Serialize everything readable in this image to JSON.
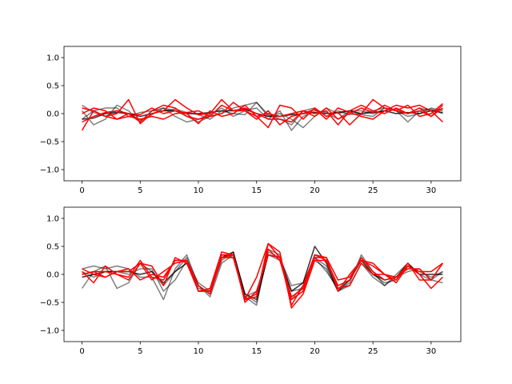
{
  "chart_data": [
    {
      "type": "line",
      "xlim": [
        -1.55,
        32.55
      ],
      "ylim": [
        -1.2,
        1.2
      ],
      "xticks": [
        0,
        5,
        10,
        15,
        20,
        25,
        30
      ],
      "yticks": [
        -1.0,
        -0.5,
        0.0,
        0.5,
        1.0
      ],
      "xtick_labels": [
        "0",
        "5",
        "10",
        "15",
        "20",
        "25",
        "30"
      ],
      "ytick_labels": [
        "−1.0",
        "−0.5",
        "0.0",
        "0.5",
        "1.0"
      ],
      "grid": false,
      "series": [
        {
          "color": "#000000",
          "opacity": 0.5,
          "values": [
            0.15,
            0.02,
            -0.05,
            0.05,
            0.0,
            -0.12,
            -0.02,
            0.1,
            0.05,
            -0.05,
            -0.15,
            -0.05,
            0.0,
            0.1,
            0.15,
            0.2,
            -0.02,
            -0.1,
            -0.2,
            0.05,
            0.1,
            -0.05,
            0.05,
            -0.02,
            0.0,
            0.05,
            0.1,
            0.05,
            -0.05,
            0.0,
            0.1,
            0.05
          ]
        },
        {
          "color": "#000000",
          "opacity": 0.5,
          "values": [
            0.05,
            -0.2,
            -0.1,
            0.15,
            0.05,
            -0.15,
            0.05,
            0.1,
            -0.05,
            -0.15,
            -0.1,
            -0.02,
            0.1,
            -0.05,
            0.05,
            0.1,
            -0.1,
            0.05,
            -0.3,
            -0.05,
            0.05,
            0.02,
            -0.1,
            0.05,
            -0.02,
            -0.05,
            0.1,
            0.05,
            -0.15,
            0.05,
            0.08,
            0.0
          ]
        },
        {
          "color": "#000000",
          "opacity": 0.5,
          "values": [
            -0.1,
            0.05,
            0.1,
            0.1,
            -0.05,
            0.02,
            0.05,
            0.05,
            0.08,
            0.02,
            -0.02,
            -0.1,
            0.05,
            0.0,
            -0.02,
            0.2,
            -0.05,
            0.0,
            -0.1,
            -0.25,
            -0.05,
            0.1,
            0.0,
            0.05,
            0.05,
            0.0,
            0.05,
            0.08,
            0.0,
            0.1,
            0.05,
            0.08
          ]
        },
        {
          "color": "#000000",
          "opacity": 0.8,
          "values": [
            -0.1,
            -0.08,
            0.0,
            0.02,
            0.0,
            -0.05,
            0.0,
            0.05,
            0.05,
            0.0,
            0.0,
            0.02,
            0.05,
            0.05,
            0.08,
            0.0,
            -0.05,
            -0.05,
            -0.02,
            0.0,
            0.02,
            0.0,
            0.02,
            0.05,
            0.0,
            0.02,
            0.05,
            0.0,
            0.02,
            0.0,
            0.05,
            0.02
          ]
        },
        {
          "color": "#ff0000",
          "opacity": 1.0,
          "values": [
            -0.3,
            0.05,
            -0.05,
            0.0,
            0.25,
            -0.18,
            0.0,
            0.05,
            0.25,
            0.1,
            -0.02,
            0.0,
            0.25,
            0.05,
            0.05,
            -0.05,
            -0.25,
            0.15,
            0.1,
            -0.1,
            0.1,
            -0.05,
            0.02,
            -0.2,
            0.0,
            0.25,
            0.1,
            0.05,
            0.15,
            -0.05,
            0.0,
            0.18
          ]
        },
        {
          "color": "#ff0000",
          "opacity": 1.0,
          "values": [
            0.1,
            0.05,
            -0.05,
            -0.1,
            0.0,
            -0.15,
            0.05,
            0.15,
            0.1,
            -0.05,
            -0.1,
            -0.05,
            0.0,
            0.2,
            0.05,
            -0.1,
            0.05,
            -0.2,
            -0.05,
            0.0,
            0.08,
            -0.1,
            0.1,
            0.02,
            -0.05,
            -0.1,
            0.05,
            0.15,
            0.1,
            0.15,
            0.05,
            -0.15
          ]
        },
        {
          "color": "#ff0000",
          "opacity": 1.0,
          "values": [
            0.0,
            0.1,
            0.05,
            -0.1,
            -0.05,
            -0.1,
            -0.05,
            -0.1,
            0.0,
            0.02,
            0.05,
            -0.05,
            0.15,
            0.05,
            0.1,
            0.0,
            -0.1,
            -0.1,
            -0.15,
            0.05,
            0.0,
            0.05,
            -0.2,
            0.05,
            0.15,
            0.05,
            0.0,
            0.1,
            0.0,
            0.05,
            -0.05,
            0.1
          ]
        },
        {
          "color": "#ff0000",
          "opacity": 1.0,
          "values": [
            -0.15,
            -0.05,
            0.02,
            0.05,
            0.0,
            -0.02,
            0.1,
            0.0,
            0.05,
            0.0,
            -0.18,
            0.05,
            -0.05,
            0.0,
            0.15,
            -0.05,
            0.0,
            -0.05,
            0.0,
            0.05,
            -0.05,
            0.1,
            -0.1,
            0.0,
            0.1,
            0.02,
            0.15,
            0.05,
            0.0,
            0.1,
            -0.05,
            0.15
          ]
        }
      ]
    },
    {
      "type": "line",
      "xlim": [
        -1.55,
        32.55
      ],
      "ylim": [
        -1.2,
        1.2
      ],
      "xticks": [
        0,
        5,
        10,
        15,
        20,
        25,
        30
      ],
      "yticks": [
        -1.0,
        -0.5,
        0.0,
        0.5,
        1.0
      ],
      "xtick_labels": [
        "0",
        "5",
        "10",
        "15",
        "20",
        "25",
        "30"
      ],
      "ytick_labels": [
        "−1.0",
        "−0.5",
        "0.0",
        "0.5",
        "1.0"
      ],
      "grid": false,
      "series": [
        {
          "color": "#000000",
          "opacity": 0.5,
          "values": [
            0.1,
            0.15,
            0.1,
            0.15,
            0.1,
            -0.05,
            -0.05,
            -0.45,
            0.1,
            0.35,
            -0.2,
            -0.4,
            0.2,
            0.35,
            -0.35,
            -0.5,
            0.4,
            0.3,
            -0.2,
            -0.15,
            0.3,
            0.05,
            -0.25,
            -0.1,
            0.3,
            0.0,
            -0.15,
            -0.1,
            0.15,
            0.05,
            -0.05,
            0.05
          ]
        },
        {
          "color": "#000000",
          "opacity": 0.5,
          "values": [
            -0.25,
            0.05,
            0.15,
            -0.25,
            -0.15,
            0.2,
            0.05,
            -0.2,
            0.05,
            0.3,
            -0.25,
            -0.3,
            0.35,
            0.3,
            -0.4,
            -0.55,
            0.45,
            0.35,
            -0.45,
            -0.2,
            0.3,
            0.15,
            -0.3,
            -0.15,
            0.35,
            0.05,
            -0.2,
            -0.05,
            0.05,
            0.1,
            -0.1,
            -0.15
          ]
        },
        {
          "color": "#000000",
          "opacity": 0.5,
          "values": [
            0.05,
            -0.05,
            0.05,
            0.05,
            0.0,
            0.1,
            0.1,
            -0.3,
            -0.1,
            0.25,
            -0.15,
            -0.3,
            0.25,
            0.4,
            -0.4,
            -0.3,
            0.35,
            0.25,
            -0.3,
            -0.25,
            0.25,
            0.1,
            -0.3,
            -0.2,
            0.2,
            -0.05,
            -0.2,
            0.0,
            0.2,
            0.0,
            -0.1,
            0.05
          ]
        },
        {
          "color": "#000000",
          "opacity": 0.8,
          "values": [
            -0.05,
            0.0,
            0.05,
            0.05,
            0.05,
            0.0,
            0.05,
            -0.15,
            0.05,
            0.2,
            -0.2,
            -0.35,
            0.3,
            0.4,
            -0.35,
            -0.45,
            0.35,
            0.3,
            -0.3,
            -0.15,
            0.5,
            0.2,
            -0.3,
            -0.1,
            0.25,
            0.0,
            -0.1,
            -0.05,
            0.2,
            0.0,
            0.0,
            0.0
          ]
        },
        {
          "color": "#ff0000",
          "opacity": 1.0,
          "values": [
            0.05,
            -0.15,
            0.15,
            0.0,
            -0.1,
            0.2,
            0.15,
            -0.2,
            0.3,
            0.2,
            -0.3,
            -0.25,
            0.4,
            0.35,
            -0.45,
            -0.4,
            0.55,
            0.3,
            -0.55,
            -0.2,
            0.35,
            0.3,
            -0.3,
            0.0,
            0.25,
            0.15,
            0.0,
            -0.15,
            0.15,
            0.0,
            -0.25,
            -0.05
          ]
        },
        {
          "color": "#ff0000",
          "opacity": 1.0,
          "values": [
            0.0,
            0.05,
            0.05,
            0.0,
            -0.05,
            0.25,
            -0.05,
            -0.1,
            0.25,
            0.25,
            -0.2,
            -0.35,
            0.3,
            0.35,
            -0.45,
            -0.35,
            0.45,
            0.25,
            -0.45,
            -0.3,
            0.35,
            0.25,
            -0.2,
            -0.1,
            0.3,
            0.05,
            -0.1,
            -0.05,
            0.15,
            0.05,
            0.05,
            0.2
          ]
        },
        {
          "color": "#ff0000",
          "opacity": 1.0,
          "values": [
            0.0,
            0.05,
            -0.05,
            0.05,
            0.1,
            -0.1,
            0.0,
            -0.05,
            0.25,
            0.25,
            -0.3,
            -0.3,
            0.35,
            0.35,
            -0.5,
            -0.3,
            0.35,
            0.3,
            -0.4,
            -0.25,
            0.3,
            0.3,
            -0.1,
            -0.05,
            0.25,
            0.2,
            0.0,
            -0.05,
            0.1,
            0.1,
            -0.1,
            0.2
          ]
        },
        {
          "color": "#ff0000",
          "opacity": 1.0,
          "values": [
            0.1,
            0.0,
            -0.05,
            0.05,
            0.05,
            0.2,
            -0.1,
            0.05,
            0.2,
            0.25,
            -0.3,
            -0.3,
            0.3,
            0.3,
            -0.45,
            -0.05,
            0.55,
            0.4,
            -0.6,
            -0.35,
            0.25,
            0.25,
            -0.25,
            -0.2,
            0.2,
            0.0,
            0.0,
            -0.1,
            0.2,
            -0.1,
            -0.1,
            0.2
          ]
        }
      ]
    }
  ]
}
